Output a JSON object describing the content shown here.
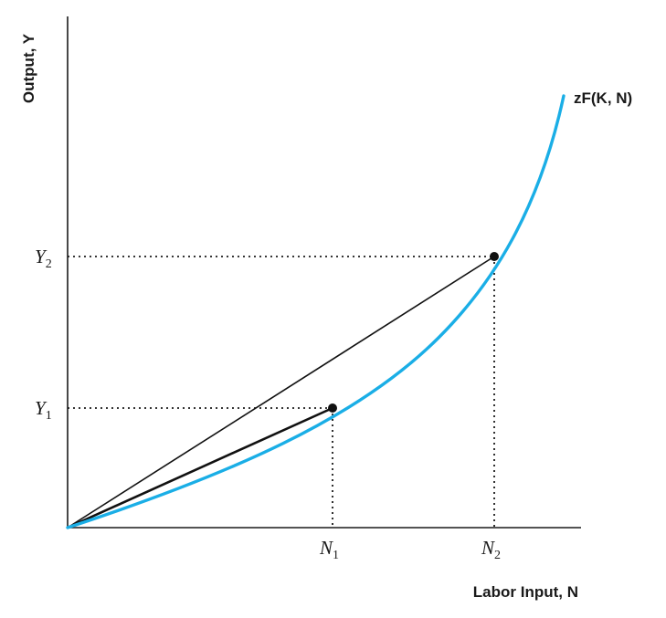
{
  "figure": {
    "y_axis_label": "Output, Y",
    "x_axis_label": "Labor Input, N",
    "curve_label": "zF(K, N)",
    "points": [
      {
        "name": "Y",
        "index": "1",
        "x_name": "N",
        "x_index": "1"
      },
      {
        "name": "Y",
        "index": "2",
        "x_name": "N",
        "x_index": "2"
      }
    ],
    "colors": {
      "curve": "#1aaee6",
      "lines": "#111111"
    }
  }
}
